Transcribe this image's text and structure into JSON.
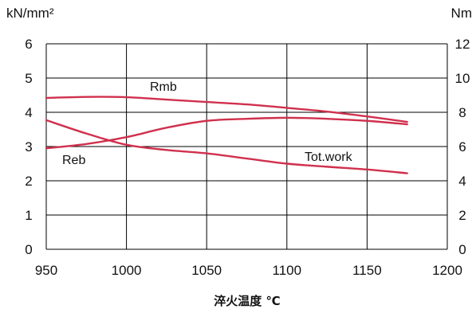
{
  "chart_data": {
    "type": "line",
    "xlabel": "淬火温度 ℃",
    "ylabel_left": "kN/mm²",
    "ylabel_right": "Nm",
    "xlim": [
      950,
      1200
    ],
    "ylim_left": [
      0,
      6
    ],
    "ylim_right": [
      0,
      12
    ],
    "x_ticks": [
      950,
      1000,
      1050,
      1100,
      1150,
      1200
    ],
    "y_ticks_left": [
      0,
      1,
      2,
      3,
      4,
      5,
      6
    ],
    "y_ticks_right": [
      0,
      2,
      4,
      6,
      8,
      10,
      12
    ],
    "grid": true,
    "line_color": "#d0304d",
    "series": [
      {
        "name": "Rmb",
        "axis": "left",
        "x": [
          950,
          975,
          1000,
          1025,
          1050,
          1075,
          1100,
          1125,
          1150,
          1175
        ],
        "y": [
          4.42,
          4.45,
          4.44,
          4.37,
          4.3,
          4.23,
          4.13,
          4.02,
          3.88,
          3.72
        ]
      },
      {
        "name": "Reb",
        "axis": "left",
        "x": [
          950,
          975,
          1000,
          1025,
          1050,
          1075,
          1100,
          1125,
          1150,
          1175
        ],
        "y": [
          3.77,
          3.38,
          3.05,
          2.9,
          2.8,
          2.65,
          2.5,
          2.41,
          2.33,
          2.22
        ]
      },
      {
        "name": "Tot.work",
        "axis": "right",
        "x": [
          950,
          975,
          1000,
          1025,
          1050,
          1075,
          1100,
          1125,
          1150,
          1175
        ],
        "y": [
          5.9,
          6.15,
          6.55,
          7.1,
          7.5,
          7.62,
          7.68,
          7.62,
          7.5,
          7.3
        ]
      }
    ]
  }
}
